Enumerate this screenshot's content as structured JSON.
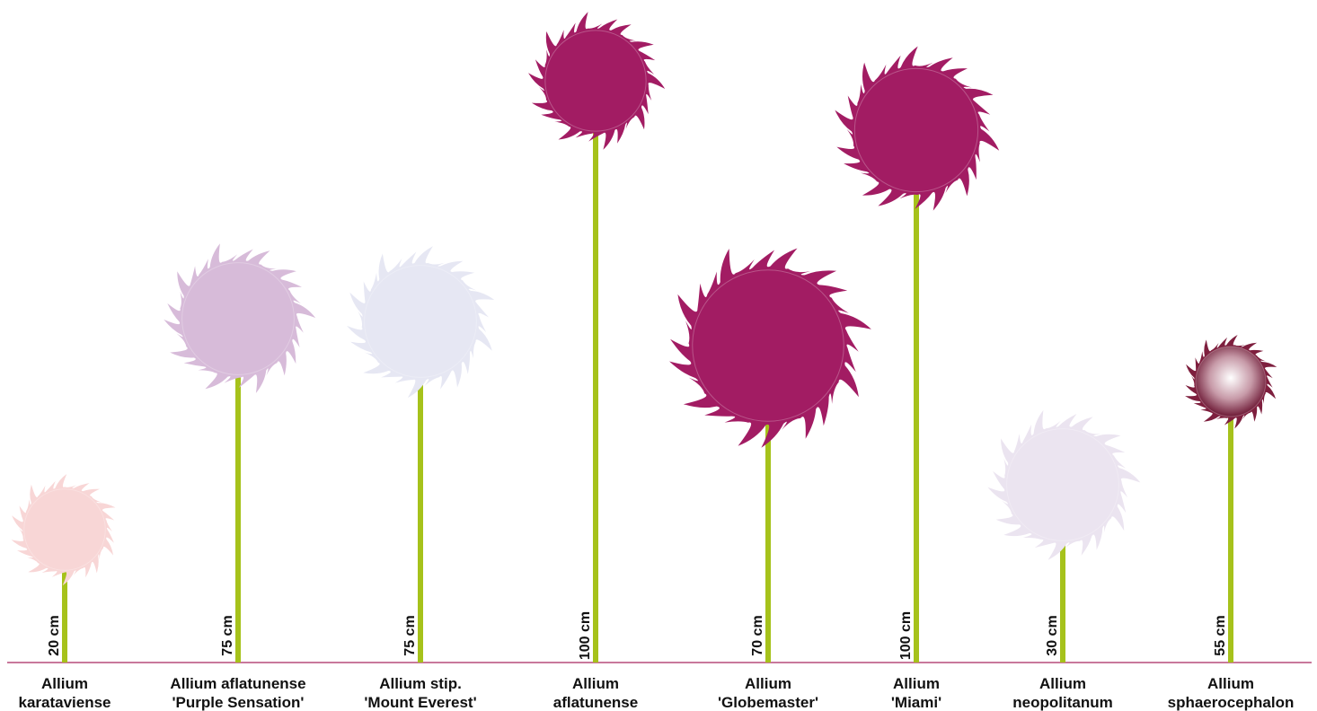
{
  "plants": [
    {
      "name": [
        "Allium",
        "karataviense"
      ],
      "height": "20 cm",
      "color": "#f8d6d6"
    },
    {
      "name": [
        "Allium aflatunense",
        "'Purple Sensation'"
      ],
      "height": "75 cm",
      "color": "#d7bbd9"
    },
    {
      "name": [
        "Allium stip.",
        "'Mount Everest'"
      ],
      "height": "75 cm",
      "color": "#e6e7f3"
    },
    {
      "name": [
        "Allium",
        "aflatunense"
      ],
      "height": "100 cm",
      "color": "#a21c63"
    },
    {
      "name": [
        "Allium",
        "'Globemaster'"
      ],
      "height": "70 cm",
      "color": "#a21c63"
    },
    {
      "name": [
        "Allium",
        "'Miami'"
      ],
      "height": "100 cm",
      "color": "#a21c63"
    },
    {
      "name": [
        "Allium",
        "neopolitanum"
      ],
      "height": "30 cm",
      "color": "#ebe4f0"
    },
    {
      "name": [
        "Allium",
        "sphaerocephalon"
      ],
      "height": "55 cm",
      "color": "#7e1f3e"
    }
  ],
  "stem_color": "#a6c21b",
  "ground_color": "#a8285f"
}
